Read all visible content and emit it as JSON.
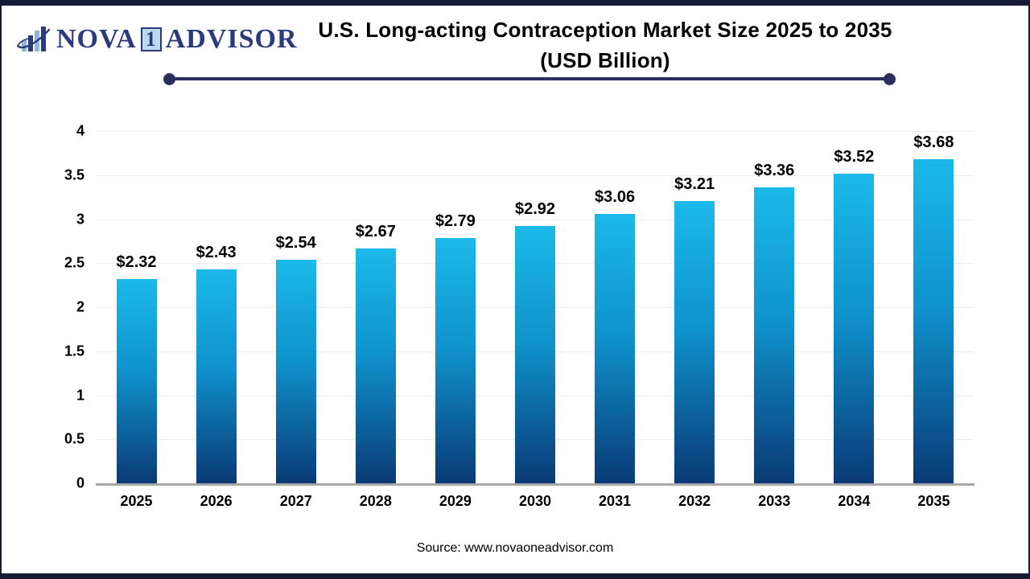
{
  "logo": {
    "icon": "bar-chart-swoosh-icon",
    "brand_prefix": "NOVA",
    "brand_number": "1",
    "brand_suffix": "ADVISOR"
  },
  "header": {
    "title_line1": "U.S. Long-acting Contraception Market Size 2025 to 2035",
    "title_line2": "(USD Billion)"
  },
  "footer": {
    "source_text": "Source: www.novaoneadvisor.com"
  },
  "colors": {
    "bar_gradient_top": "#1bb9e9",
    "bar_gradient_mid": "#0f93cc",
    "bar_gradient_bottom": "#0a3a76",
    "divider_navy": "#2a2f5e",
    "frame_navy": "#171b35",
    "logo_navy": "#2b3a7c",
    "logo_light_blue": "#8fb4dc",
    "grid_gray": "#ededed",
    "baseline_gray": "#a8a8a8",
    "text_black": "#000000"
  },
  "chart_data": {
    "type": "bar",
    "title": "U.S. Long-acting Contraception Market Size 2025 to 2035 (USD Billion)",
    "categories": [
      "2025",
      "2026",
      "2027",
      "2028",
      "2029",
      "2030",
      "2031",
      "2032",
      "2033",
      "2034",
      "2035"
    ],
    "values": [
      2.32,
      2.43,
      2.54,
      2.67,
      2.79,
      2.92,
      3.06,
      3.21,
      3.36,
      3.52,
      3.68
    ],
    "value_labels": [
      "$2.32",
      "$2.43",
      "$2.54",
      "$2.67",
      "$2.79",
      "$2.92",
      "$3.06",
      "$3.21",
      "$3.36",
      "$3.52",
      "$3.68"
    ],
    "xlabel": "",
    "ylabel": "",
    "ylim": [
      0,
      4
    ],
    "yticks": [
      0,
      0.5,
      1,
      1.5,
      2,
      2.5,
      3,
      3.5,
      4
    ],
    "ytick_labels": [
      "0",
      "0.5",
      "1",
      "1.5",
      "2",
      "2.5",
      "3",
      "3.5",
      "4"
    ],
    "grid": true,
    "legend": null,
    "source": "Source: www.novaoneadvisor.com"
  }
}
